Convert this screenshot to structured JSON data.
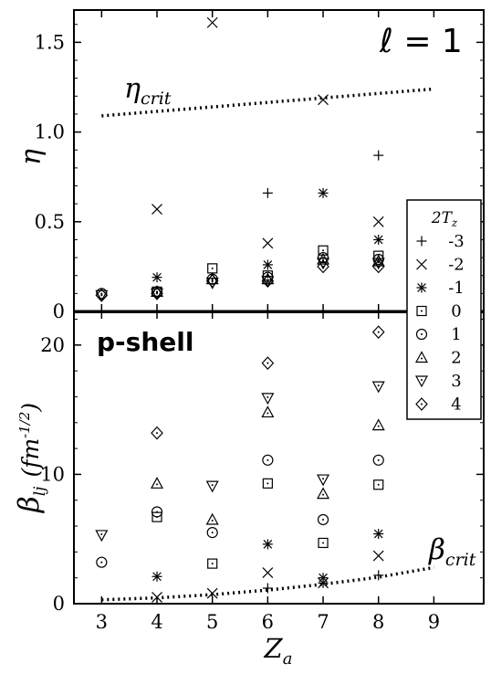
{
  "chart_data": [
    {
      "type": "scatter",
      "panel": "top",
      "ylabel": "η",
      "yticks": [
        "0",
        "0.5",
        "1.0",
        "1.5"
      ],
      "ylim": [
        0,
        1.68
      ],
      "xlim": [
        2.5,
        9.9
      ],
      "annotation": "ℓ = 1",
      "curve": {
        "label": "η",
        "label_sub": "crit",
        "points": [
          [
            3,
            1.09
          ],
          [
            9,
            1.24
          ]
        ]
      },
      "series": [
        {
          "name": "-3",
          "symbol": "plus",
          "points": [
            [
              6,
              0.66
            ],
            [
              8,
              0.87
            ]
          ]
        },
        {
          "name": "-2",
          "symbol": "cross",
          "points": [
            [
              4,
              0.57
            ],
            [
              5,
              1.61
            ],
            [
              6,
              0.38
            ],
            [
              7,
              1.18
            ],
            [
              8,
              0.5
            ]
          ]
        },
        {
          "name": "-1",
          "symbol": "asterisk",
          "points": [
            [
              4,
              0.19
            ],
            [
              6,
              0.26
            ],
            [
              7,
              0.66
            ],
            [
              8,
              0.4
            ]
          ]
        },
        {
          "name": "0",
          "symbol": "square",
          "points": [
            [
              4,
              0.11
            ],
            [
              5,
              0.24
            ],
            [
              6,
              0.2
            ],
            [
              7,
              0.34
            ],
            [
              8,
              0.31
            ]
          ]
        },
        {
          "name": "1",
          "symbol": "circle",
          "points": [
            [
              3,
              0.1
            ],
            [
              4,
              0.11
            ],
            [
              5,
              0.18
            ],
            [
              6,
              0.19
            ],
            [
              7,
              0.3
            ],
            [
              8,
              0.29
            ]
          ]
        },
        {
          "name": "2",
          "symbol": "triangle-up",
          "points": [
            [
              4,
              0.11
            ],
            [
              5,
              0.18
            ],
            [
              6,
              0.18
            ],
            [
              7,
              0.29
            ],
            [
              8,
              0.28
            ]
          ]
        },
        {
          "name": "3",
          "symbol": "triangle-down",
          "points": [
            [
              3,
              0.09
            ],
            [
              4,
              0.1
            ],
            [
              5,
              0.16
            ],
            [
              6,
              0.17
            ],
            [
              7,
              0.27
            ],
            [
              8,
              0.27
            ]
          ]
        },
        {
          "name": "4",
          "symbol": "diamond",
          "points": [
            [
              3,
              0.09
            ],
            [
              4,
              0.1
            ],
            [
              5,
              0.17
            ],
            [
              6,
              0.17
            ],
            [
              7,
              0.25
            ],
            [
              8,
              0.25
            ]
          ]
        }
      ]
    },
    {
      "type": "scatter",
      "panel": "bottom",
      "ylabel": "β",
      "ylabel_sub": "lj",
      "ylabel_unit": "(fm",
      "ylabel_unit_exp": "-1/2",
      "ylabel_unit_close": ")",
      "yticks": [
        "0",
        "10",
        "20"
      ],
      "ylim": [
        0,
        22.6
      ],
      "xlim": [
        2.5,
        9.9
      ],
      "xticks": [
        "3",
        "4",
        "5",
        "6",
        "7",
        "8",
        "9"
      ],
      "xlabel": "Z",
      "xlabel_sub": "a",
      "annotation": "p-shell",
      "curve": {
        "label": "β",
        "label_sub": "crit",
        "points": [
          [
            3,
            0.3
          ],
          [
            4,
            0.45
          ],
          [
            5,
            0.7
          ],
          [
            6,
            1.05
          ],
          [
            7,
            1.5
          ],
          [
            8,
            2.05
          ],
          [
            9,
            2.8
          ]
        ]
      },
      "series": [
        {
          "name": "-3",
          "symbol": "plus",
          "points": [
            [
              6,
              1.2
            ],
            [
              7,
              1.6
            ],
            [
              8,
              2.2
            ]
          ]
        },
        {
          "name": "-2",
          "symbol": "cross",
          "points": [
            [
              4,
              0.5
            ],
            [
              5,
              0.8
            ],
            [
              6,
              2.4
            ],
            [
              7,
              1.6
            ],
            [
              8,
              3.7
            ]
          ]
        },
        {
          "name": "-1",
          "symbol": "asterisk",
          "points": [
            [
              4,
              2.1
            ],
            [
              6,
              4.6
            ],
            [
              7,
              2.0
            ],
            [
              8,
              5.4
            ]
          ]
        },
        {
          "name": "0",
          "symbol": "square",
          "points": [
            [
              4,
              6.7
            ],
            [
              5,
              3.1
            ],
            [
              6,
              9.3
            ],
            [
              7,
              4.7
            ],
            [
              8,
              9.2
            ]
          ]
        },
        {
          "name": "1",
          "symbol": "circle",
          "points": [
            [
              3,
              3.2
            ],
            [
              4,
              7.1
            ],
            [
              5,
              5.5
            ],
            [
              6,
              11.1
            ],
            [
              7,
              6.5
            ],
            [
              8,
              11.1
            ]
          ]
        },
        {
          "name": "2",
          "symbol": "triangle-up",
          "points": [
            [
              4,
              9.3
            ],
            [
              5,
              6.5
            ],
            [
              6,
              14.8
            ],
            [
              7,
              8.5
            ],
            [
              8,
              13.8
            ]
          ]
        },
        {
          "name": "3",
          "symbol": "triangle-down",
          "points": [
            [
              3,
              5.3
            ],
            [
              5,
              9.1
            ],
            [
              6,
              15.9
            ],
            [
              7,
              9.6
            ],
            [
              8,
              16.8
            ]
          ]
        },
        {
          "name": "4",
          "symbol": "diamond",
          "points": [
            [
              4,
              13.2
            ],
            [
              6,
              18.6
            ],
            [
              8,
              21.0
            ]
          ]
        }
      ]
    }
  ],
  "legend": {
    "title": "2T",
    "title_sub": "z",
    "entries": [
      "-3",
      "-2",
      "-1",
      "0",
      "1",
      "2",
      "3",
      "4"
    ]
  }
}
